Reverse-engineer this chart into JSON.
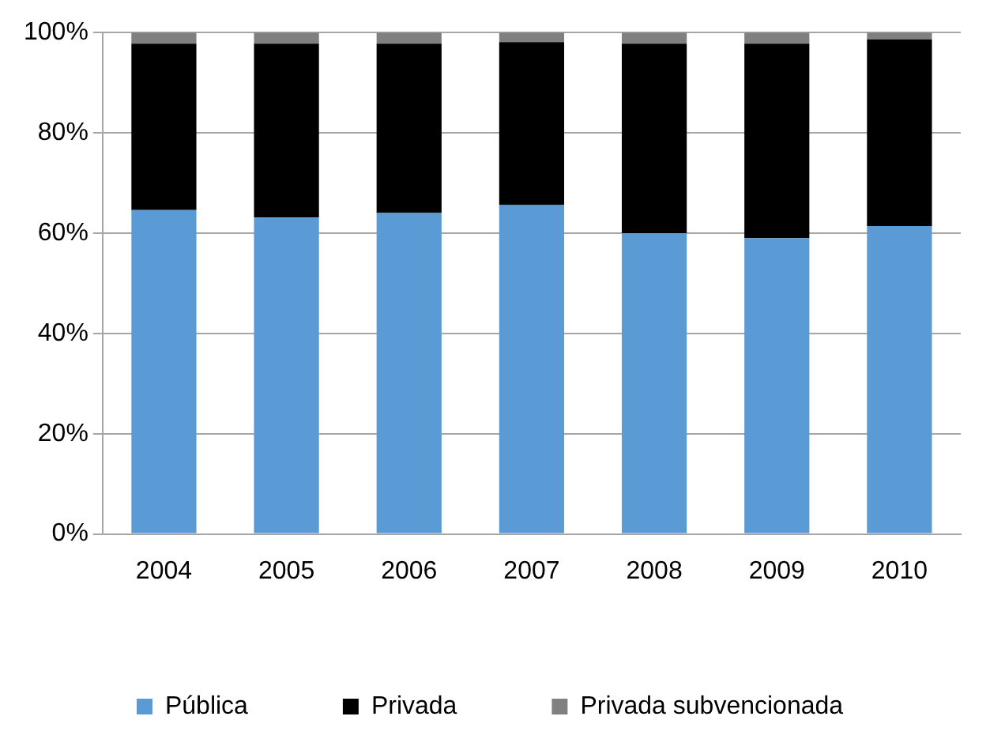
{
  "chart_data": {
    "type": "bar",
    "stacked": true,
    "categories": [
      "2004",
      "2005",
      "2006",
      "2007",
      "2008",
      "2009",
      "2010"
    ],
    "series": [
      {
        "name": "Pública",
        "color": "#5b9bd5",
        "values": [
          64.6,
          63.1,
          64.0,
          65.6,
          60.0,
          59.0,
          61.4
        ]
      },
      {
        "name": "Privada",
        "color": "#000000",
        "values": [
          33.2,
          34.7,
          33.8,
          32.5,
          37.8,
          38.8,
          37.2
        ]
      },
      {
        "name": "Privada subvencionada",
        "color": "#808080",
        "values": [
          2.2,
          2.2,
          2.2,
          1.9,
          2.2,
          2.2,
          1.4
        ]
      }
    ],
    "ylim": [
      0,
      100
    ],
    "yticks": [
      {
        "value": 0,
        "label": "0%"
      },
      {
        "value": 20,
        "label": "20%"
      },
      {
        "value": 40,
        "label": "40%"
      },
      {
        "value": 60,
        "label": "60%"
      },
      {
        "value": 80,
        "label": "80%"
      },
      {
        "value": 100,
        "label": "100%"
      }
    ],
    "grid": "y",
    "legend": "bottom"
  }
}
